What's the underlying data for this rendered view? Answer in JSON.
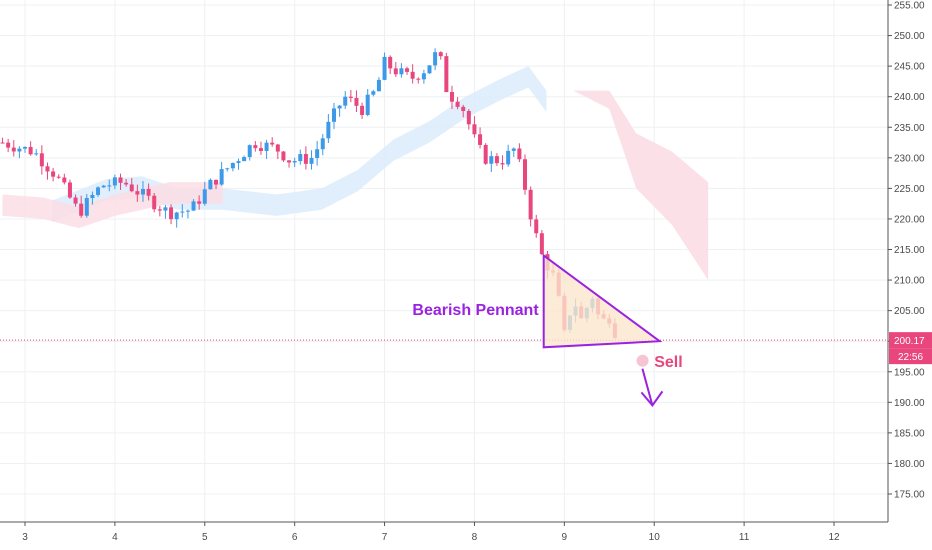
{
  "chart_data": {
    "type": "candlestick",
    "y_ticks": [
      175,
      180,
      185,
      190,
      195,
      200,
      205,
      210,
      215,
      220,
      225,
      230,
      235,
      240,
      245,
      250,
      255
    ],
    "y_tick_labels": [
      "175.00",
      "180.00",
      "185.00",
      "190.00",
      "195.00",
      "200.00",
      "205.00",
      "210.00",
      "215.00",
      "220.00",
      "225.00",
      "230.00",
      "235.00",
      "240.00",
      "245.00",
      "250.00",
      "255.00"
    ],
    "ylim": [
      174,
      256
    ],
    "x_ticks": [
      3,
      4,
      5,
      6,
      7,
      8,
      9,
      10,
      11,
      12
    ],
    "x_tick_labels": [
      "3",
      "4",
      "5",
      "6",
      "7",
      "8",
      "9",
      "10",
      "11",
      "12"
    ],
    "xlim": [
      2.73,
      12.63
    ],
    "current_price": 200.17,
    "current_price_label": "200.17",
    "countdown_label": "22:56",
    "grid": true,
    "colors": {
      "up": "#3d9ae8",
      "down": "#e8467c",
      "cloud_green": "#dcecfb",
      "cloud_red": "#fbdde5",
      "annotation": "#9b22e0",
      "pennant_fill": "#fbe6cc",
      "sell": "#e8467c"
    },
    "price_path": [
      [
        2.75,
        232.5
      ],
      [
        3.1,
        231
      ],
      [
        3.35,
        227
      ],
      [
        3.6,
        221
      ],
      [
        3.85,
        225.5
      ],
      [
        4.1,
        226
      ],
      [
        4.35,
        223.5
      ],
      [
        4.6,
        221
      ],
      [
        4.85,
        221.5
      ],
      [
        5.05,
        225.5
      ],
      [
        5.3,
        229
      ],
      [
        5.55,
        232.5
      ],
      [
        5.8,
        231.5
      ],
      [
        5.95,
        229.5
      ],
      [
        6.2,
        230
      ],
      [
        6.4,
        236
      ],
      [
        6.55,
        240
      ],
      [
        6.75,
        238
      ],
      [
        6.9,
        241
      ],
      [
        7.0,
        245.5
      ],
      [
        7.15,
        244
      ],
      [
        7.3,
        243
      ],
      [
        7.45,
        244.5
      ],
      [
        7.6,
        247.5
      ],
      [
        7.7,
        240.5
      ],
      [
        7.85,
        239
      ],
      [
        8.0,
        233
      ],
      [
        8.1,
        230
      ],
      [
        8.3,
        229.5
      ],
      [
        8.45,
        231.5
      ],
      [
        8.55,
        226
      ],
      [
        8.65,
        219
      ],
      [
        8.75,
        214
      ],
      [
        8.9,
        210
      ],
      [
        9.0,
        201
      ],
      [
        9.1,
        207
      ],
      [
        9.2,
        203
      ],
      [
        9.3,
        208
      ],
      [
        9.4,
        203
      ],
      [
        9.5,
        204
      ],
      [
        9.6,
        200.2
      ]
    ],
    "cloud_green": [
      [
        3.3,
        223
      ],
      [
        3.9,
        226.5
      ],
      [
        4.3,
        227
      ],
      [
        4.7,
        225
      ],
      [
        5.2,
        225
      ],
      [
        5.8,
        224
      ],
      [
        6.3,
        225
      ],
      [
        6.7,
        228
      ],
      [
        7.1,
        233
      ],
      [
        7.5,
        236
      ],
      [
        7.9,
        240
      ],
      [
        8.3,
        243
      ],
      [
        8.6,
        245
      ],
      [
        8.8,
        241
      ]
    ],
    "cloud_red": [
      [
        2.75,
        224
      ],
      [
        3.2,
        223.5
      ],
      [
        3.6,
        222
      ],
      [
        4.0,
        224
      ],
      [
        4.6,
        226
      ],
      [
        5.2,
        226
      ],
      [
        9.1,
        241
      ],
      [
        9.5,
        238
      ],
      [
        9.8,
        225
      ],
      [
        10.2,
        219
      ],
      [
        10.6,
        210
      ],
      [
        10.6,
        226
      ]
    ],
    "annotations": {
      "pattern_label": "Bearish Pennant",
      "signal_label": "Sell",
      "pennant": [
        [
          8.77,
          214
        ],
        [
          10.06,
          200
        ],
        [
          8.77,
          199
        ]
      ],
      "arrow": {
        "from": [
          9.98,
          195.5
        ],
        "to": [
          9.98,
          189.5
        ]
      }
    }
  }
}
